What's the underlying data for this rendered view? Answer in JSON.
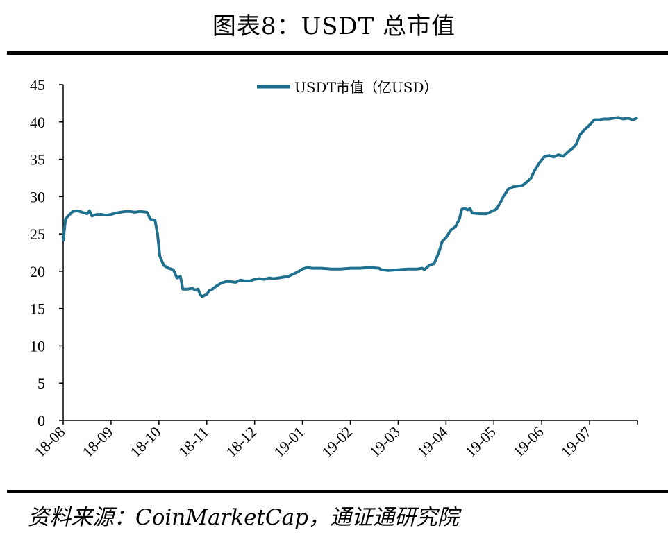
{
  "header": {
    "title": "图表8：USDT 总市值"
  },
  "footer": {
    "source": "资料来源：CoinMarketCap，通证通研究院"
  },
  "colors": {
    "series": "#1f6f8f",
    "axis": "#000000"
  },
  "chart_data": {
    "type": "line",
    "title": "",
    "xlabel": "",
    "ylabel": "",
    "ylim": [
      0,
      45
    ],
    "yticks": [
      0,
      5,
      10,
      15,
      20,
      25,
      30,
      35,
      40,
      45
    ],
    "xlim": [
      0,
      12
    ],
    "xticks": [
      {
        "label": "18-08",
        "x": 0
      },
      {
        "label": "18-09",
        "x": 1
      },
      {
        "label": "18-10",
        "x": 2
      },
      {
        "label": "18-11",
        "x": 3
      },
      {
        "label": "18-12",
        "x": 4
      },
      {
        "label": "19-01",
        "x": 5
      },
      {
        "label": "19-02",
        "x": 6
      },
      {
        "label": "19-03",
        "x": 7
      },
      {
        "label": "19-04",
        "x": 8
      },
      {
        "label": "19-05",
        "x": 9
      },
      {
        "label": "19-06",
        "x": 10
      },
      {
        "label": "19-07",
        "x": 11
      }
    ],
    "grid": false,
    "legend_position": "top-center",
    "series": [
      {
        "name": "USDT市值（亿USD）",
        "points": [
          [
            0.0,
            24.0
          ],
          [
            0.05,
            27.0
          ],
          [
            0.12,
            27.5
          ],
          [
            0.2,
            28.0
          ],
          [
            0.3,
            28.1
          ],
          [
            0.4,
            27.9
          ],
          [
            0.5,
            27.7
          ],
          [
            0.55,
            28.1
          ],
          [
            0.6,
            27.4
          ],
          [
            0.7,
            27.6
          ],
          [
            0.8,
            27.6
          ],
          [
            0.9,
            27.5
          ],
          [
            1.0,
            27.6
          ],
          [
            1.1,
            27.8
          ],
          [
            1.2,
            27.9
          ],
          [
            1.3,
            28.0
          ],
          [
            1.4,
            28.0
          ],
          [
            1.5,
            27.9
          ],
          [
            1.6,
            28.0
          ],
          [
            1.75,
            27.9
          ],
          [
            1.82,
            27.0
          ],
          [
            1.92,
            26.8
          ],
          [
            1.97,
            25.0
          ],
          [
            2.02,
            22.0
          ],
          [
            2.1,
            20.8
          ],
          [
            2.2,
            20.4
          ],
          [
            2.3,
            20.2
          ],
          [
            2.38,
            19.1
          ],
          [
            2.45,
            19.3
          ],
          [
            2.5,
            17.6
          ],
          [
            2.6,
            17.6
          ],
          [
            2.7,
            17.7
          ],
          [
            2.75,
            17.5
          ],
          [
            2.82,
            17.6
          ],
          [
            2.86,
            16.9
          ],
          [
            2.9,
            16.6
          ],
          [
            3.0,
            16.9
          ],
          [
            3.05,
            17.4
          ],
          [
            3.12,
            17.6
          ],
          [
            3.2,
            18.0
          ],
          [
            3.3,
            18.4
          ],
          [
            3.4,
            18.6
          ],
          [
            3.5,
            18.6
          ],
          [
            3.6,
            18.5
          ],
          [
            3.7,
            18.8
          ],
          [
            3.8,
            18.7
          ],
          [
            3.9,
            18.7
          ],
          [
            4.0,
            18.9
          ],
          [
            4.1,
            19.0
          ],
          [
            4.2,
            18.9
          ],
          [
            4.3,
            19.1
          ],
          [
            4.4,
            19.0
          ],
          [
            4.5,
            19.1
          ],
          [
            4.6,
            19.2
          ],
          [
            4.7,
            19.3
          ],
          [
            4.8,
            19.6
          ],
          [
            4.9,
            19.9
          ],
          [
            5.0,
            20.3
          ],
          [
            5.1,
            20.5
          ],
          [
            5.2,
            20.4
          ],
          [
            5.4,
            20.4
          ],
          [
            5.6,
            20.3
          ],
          [
            5.8,
            20.3
          ],
          [
            6.0,
            20.4
          ],
          [
            6.2,
            20.4
          ],
          [
            6.4,
            20.5
          ],
          [
            6.6,
            20.4
          ],
          [
            6.65,
            20.2
          ],
          [
            6.8,
            20.1
          ],
          [
            7.0,
            20.2
          ],
          [
            7.2,
            20.3
          ],
          [
            7.4,
            20.3
          ],
          [
            7.5,
            20.4
          ],
          [
            7.55,
            20.2
          ],
          [
            7.65,
            20.8
          ],
          [
            7.75,
            21.0
          ],
          [
            7.85,
            22.5
          ],
          [
            7.92,
            24.0
          ],
          [
            8.0,
            24.5
          ],
          [
            8.1,
            25.5
          ],
          [
            8.2,
            26.0
          ],
          [
            8.28,
            27.0
          ],
          [
            8.33,
            28.3
          ],
          [
            8.4,
            28.4
          ],
          [
            8.45,
            28.2
          ],
          [
            8.5,
            28.4
          ],
          [
            8.55,
            27.8
          ],
          [
            8.7,
            27.7
          ],
          [
            8.85,
            27.7
          ],
          [
            8.95,
            28.0
          ],
          [
            9.05,
            28.3
          ],
          [
            9.12,
            29.0
          ],
          [
            9.2,
            30.0
          ],
          [
            9.3,
            31.0
          ],
          [
            9.4,
            31.3
          ],
          [
            9.5,
            31.4
          ],
          [
            9.6,
            31.5
          ],
          [
            9.7,
            32.0
          ],
          [
            9.78,
            32.5
          ],
          [
            9.85,
            33.5
          ],
          [
            9.95,
            34.5
          ],
          [
            10.05,
            35.3
          ],
          [
            10.15,
            35.5
          ],
          [
            10.25,
            35.3
          ],
          [
            10.35,
            35.6
          ],
          [
            10.45,
            35.4
          ],
          [
            10.55,
            36.0
          ],
          [
            10.65,
            36.5
          ],
          [
            10.72,
            37.0
          ],
          [
            10.8,
            38.3
          ],
          [
            10.9,
            39.0
          ],
          [
            11.0,
            39.6
          ],
          [
            11.1,
            40.3
          ],
          [
            11.2,
            40.3
          ],
          [
            11.3,
            40.4
          ],
          [
            11.4,
            40.4
          ],
          [
            11.5,
            40.5
          ],
          [
            11.6,
            40.6
          ],
          [
            11.7,
            40.4
          ],
          [
            11.8,
            40.5
          ],
          [
            11.9,
            40.3
          ],
          [
            11.95,
            40.4
          ],
          [
            12.0,
            40.6
          ]
        ]
      }
    ]
  }
}
